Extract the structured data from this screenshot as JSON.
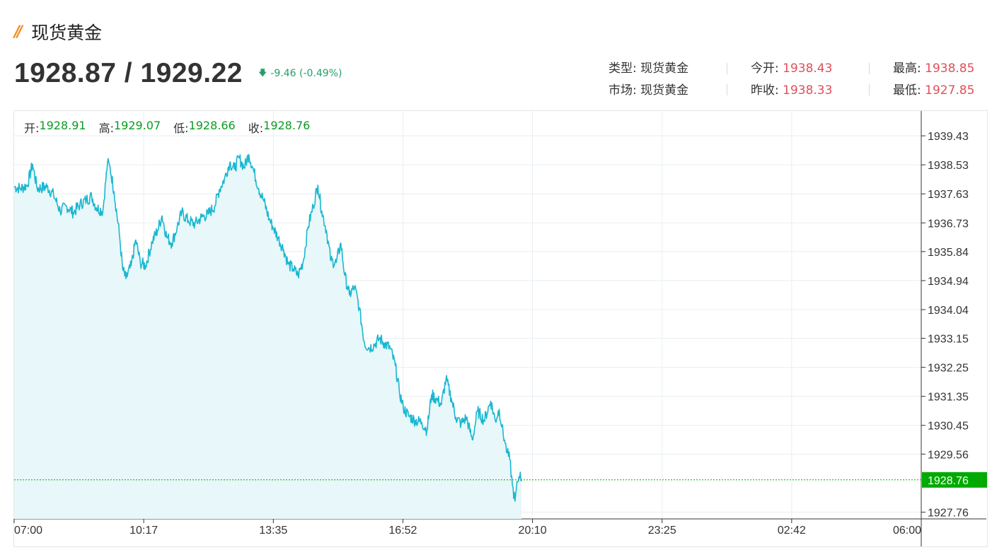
{
  "header": {
    "title": "现货黄金",
    "price": "1928.87 / 1929.22",
    "change": "-9.46 (-0.49%)"
  },
  "info": {
    "type_label": "类型:",
    "type_value": "现货黄金",
    "market_label": "市场:",
    "market_value": "现货黄金",
    "open_label": "今开:",
    "open_value": "1938.43",
    "prev_close_label": "昨收:",
    "prev_close_value": "1938.33",
    "high_label": "最高:",
    "high_value": "1938.85",
    "low_label": "最低:",
    "low_value": "1927.85"
  },
  "ohlc": {
    "open_label": "开:",
    "open_value": "1928.91",
    "high_label": "高:",
    "high_value": "1929.07",
    "low_label": "低:",
    "low_value": "1928.66",
    "close_label": "收:",
    "close_value": "1928.76"
  },
  "colors": {
    "line": "#1ab7d0",
    "area": "#e8f7f9",
    "up": "#e0505a",
    "down": "#22a06b",
    "current": "#00aa00",
    "grid": "#e8eef2"
  },
  "chart_data": {
    "type": "area",
    "x_ticks": [
      "07:00",
      "10:17",
      "13:35",
      "16:52",
      "20:10",
      "23:25",
      "02:42",
      "06:00"
    ],
    "y_ticks": [
      "1939.43",
      "1938.53",
      "1937.63",
      "1936.73",
      "1935.84",
      "1934.94",
      "1934.04",
      "1933.15",
      "1932.25",
      "1931.35",
      "1930.45",
      "1929.56",
      "1927.76"
    ],
    "ylim": [
      1927.55,
      1940.2
    ],
    "session_minutes": 1380,
    "current_price": "1928.76",
    "current_value": 1928.76,
    "series": [
      {
        "values": [
          [
            0,
            1937.85
          ],
          [
            10,
            1937.8
          ],
          [
            20,
            1937.9
          ],
          [
            28,
            1938.55
          ],
          [
            35,
            1937.8
          ],
          [
            50,
            1937.85
          ],
          [
            60,
            1937.6
          ],
          [
            70,
            1937.1
          ],
          [
            80,
            1937.25
          ],
          [
            90,
            1937.05
          ],
          [
            100,
            1937.3
          ],
          [
            110,
            1937.45
          ],
          [
            118,
            1937.55
          ],
          [
            125,
            1937.2
          ],
          [
            135,
            1937.1
          ],
          [
            142,
            1938.6
          ],
          [
            146,
            1938.45
          ],
          [
            152,
            1937.7
          ],
          [
            160,
            1936.4
          ],
          [
            165,
            1935.3
          ],
          [
            170,
            1935.0
          ],
          [
            178,
            1935.4
          ],
          [
            185,
            1936.2
          ],
          [
            192,
            1935.5
          ],
          [
            200,
            1935.4
          ],
          [
            210,
            1936.15
          ],
          [
            218,
            1936.5
          ],
          [
            225,
            1936.95
          ],
          [
            232,
            1936.3
          ],
          [
            240,
            1936.1
          ],
          [
            248,
            1936.6
          ],
          [
            255,
            1937.05
          ],
          [
            265,
            1936.8
          ],
          [
            275,
            1936.7
          ],
          [
            285,
            1936.9
          ],
          [
            295,
            1937.0
          ],
          [
            305,
            1937.25
          ],
          [
            312,
            1937.75
          ],
          [
            320,
            1938.1
          ],
          [
            328,
            1938.6
          ],
          [
            335,
            1938.4
          ],
          [
            342,
            1938.75
          ],
          [
            350,
            1938.45
          ],
          [
            357,
            1938.85
          ],
          [
            365,
            1938.3
          ],
          [
            372,
            1937.8
          ],
          [
            380,
            1937.4
          ],
          [
            388,
            1936.85
          ],
          [
            395,
            1936.55
          ],
          [
            402,
            1936.25
          ],
          [
            410,
            1935.9
          ],
          [
            417,
            1935.45
          ],
          [
            425,
            1935.3
          ],
          [
            432,
            1935.1
          ],
          [
            440,
            1935.55
          ],
          [
            447,
            1936.6
          ],
          [
            455,
            1937.25
          ],
          [
            462,
            1937.9
          ],
          [
            468,
            1937.1
          ],
          [
            475,
            1936.5
          ],
          [
            482,
            1935.55
          ],
          [
            490,
            1935.5
          ],
          [
            497,
            1936.1
          ],
          [
            503,
            1935.1
          ],
          [
            510,
            1934.5
          ],
          [
            518,
            1934.75
          ],
          [
            525,
            1934.1
          ],
          [
            533,
            1933.0
          ],
          [
            540,
            1932.85
          ],
          [
            548,
            1932.95
          ],
          [
            556,
            1933.15
          ],
          [
            563,
            1933.0
          ],
          [
            572,
            1932.85
          ],
          [
            580,
            1932.3
          ],
          [
            586,
            1931.5
          ],
          [
            592,
            1931.0
          ],
          [
            600,
            1930.75
          ],
          [
            610,
            1930.6
          ],
          [
            620,
            1930.55
          ],
          [
            628,
            1930.3
          ],
          [
            635,
            1931.4
          ],
          [
            643,
            1931.25
          ],
          [
            650,
            1931.1
          ],
          [
            657,
            1931.9
          ],
          [
            665,
            1931.3
          ],
          [
            672,
            1930.7
          ],
          [
            680,
            1930.5
          ],
          [
            688,
            1930.7
          ],
          [
            697,
            1930.0
          ],
          [
            705,
            1930.9
          ],
          [
            715,
            1930.6
          ],
          [
            725,
            1931.2
          ],
          [
            732,
            1930.6
          ],
          [
            738,
            1930.95
          ],
          [
            742,
            1930.4
          ],
          [
            746,
            1930.0
          ],
          [
            750,
            1929.6
          ],
          [
            754,
            1929.4
          ],
          [
            758,
            1928.6
          ],
          [
            762,
            1928.1
          ],
          [
            766,
            1928.7
          ],
          [
            770,
            1929.0
          ],
          [
            772,
            1928.76
          ]
        ]
      }
    ]
  }
}
